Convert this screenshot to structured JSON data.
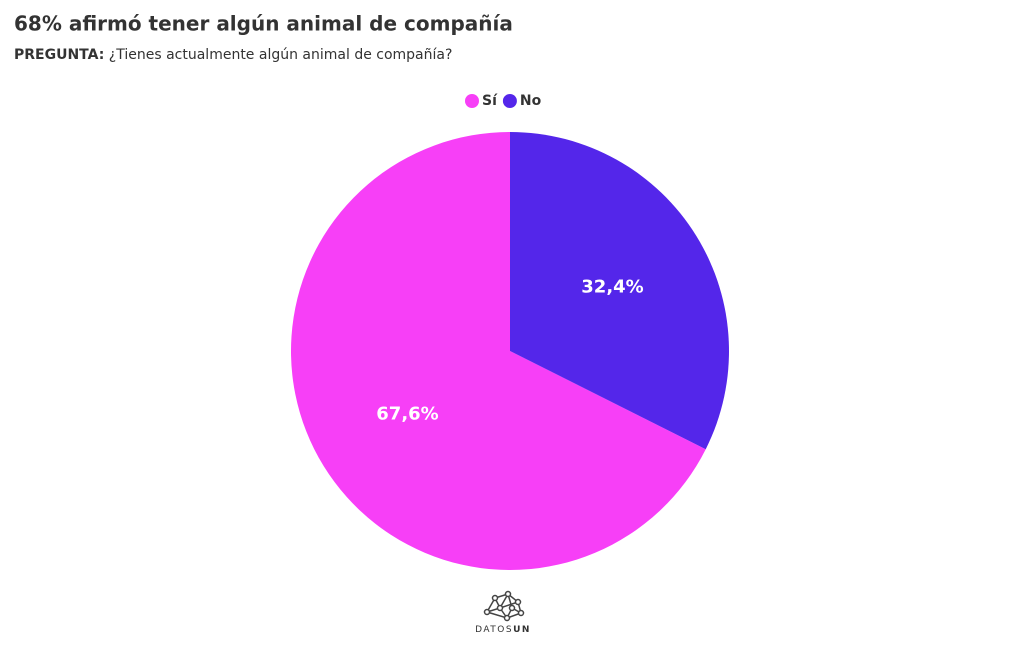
{
  "chart_data": {
    "type": "pie",
    "title": "68% afirmó tener algún animal de compañía",
    "subtitle_label": "PREGUNTA:",
    "subtitle": "¿Tienes actualmente algún animal de compañía?",
    "categories": [
      "Sí",
      "No"
    ],
    "values": [
      67.6,
      32.4
    ],
    "value_labels": [
      "67,6%",
      "32,4%"
    ],
    "colors": [
      "#f73ff7",
      "#5426ea"
    ],
    "legend": "top",
    "logo_text": [
      "DATOS",
      "UN"
    ]
  }
}
